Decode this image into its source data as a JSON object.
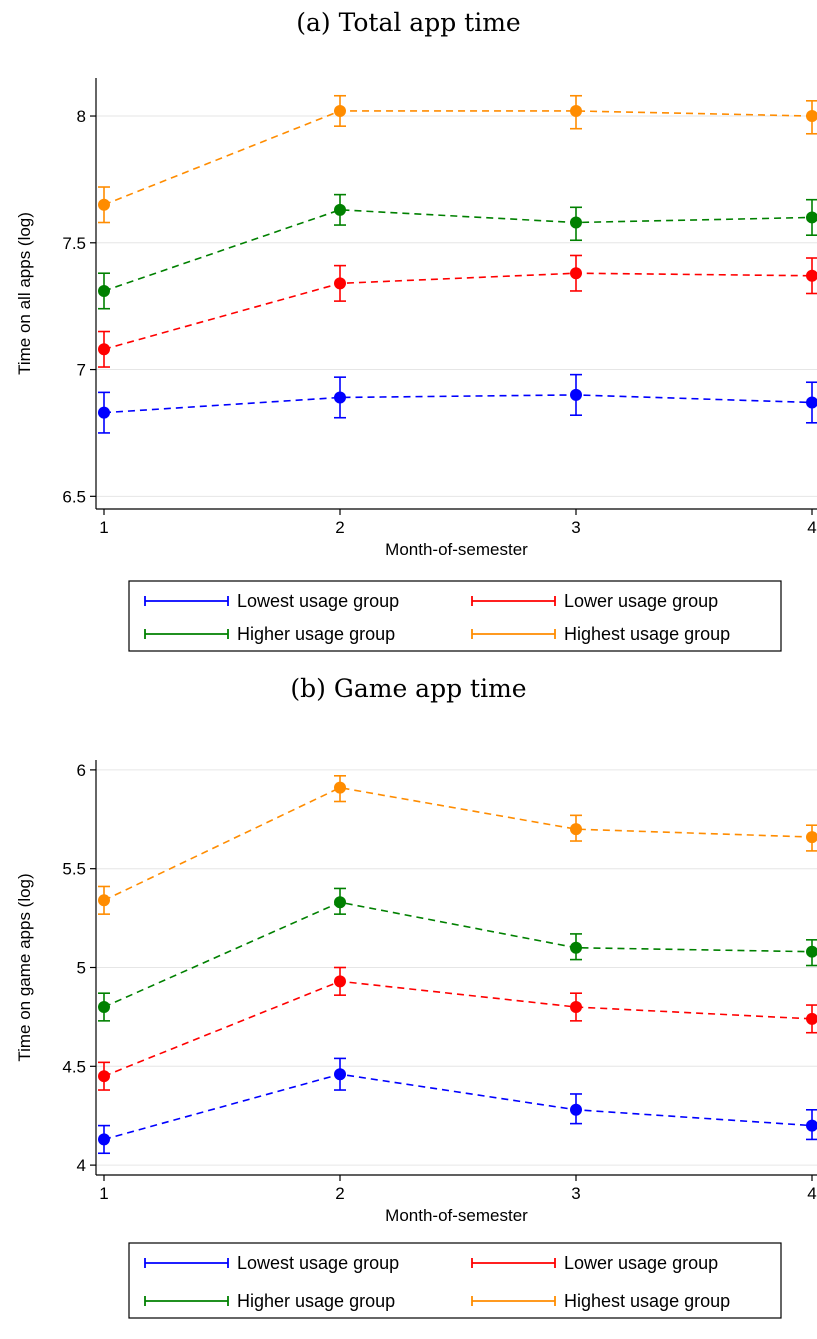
{
  "chart_data": [
    {
      "type": "line",
      "title": "(a) Total app time",
      "xlabel": "Month-of-semester",
      "ylabel": "Time on all apps (log)",
      "x": [
        1,
        2,
        3,
        4
      ],
      "xlim": [
        1,
        4
      ],
      "ylim": [
        6.45,
        8.15
      ],
      "yticks": [
        6.5,
        7,
        7.5,
        8
      ],
      "ytick_labels": [
        "6.5",
        "7",
        "7.5",
        "8"
      ],
      "xtick_labels": [
        "1",
        "2",
        "3",
        "4"
      ],
      "grid": true,
      "legend_position": "bottom",
      "series": [
        {
          "name": "Lowest usage group",
          "color": "#0000ff",
          "values": [
            6.83,
            6.89,
            6.9,
            6.87
          ],
          "lower": [
            6.75,
            6.81,
            6.82,
            6.79
          ],
          "upper": [
            6.91,
            6.97,
            6.98,
            6.95
          ]
        },
        {
          "name": "Lower usage group",
          "color": "#ff0000",
          "values": [
            7.08,
            7.34,
            7.38,
            7.37
          ],
          "lower": [
            7.01,
            7.27,
            7.31,
            7.3
          ],
          "upper": [
            7.15,
            7.41,
            7.45,
            7.44
          ]
        },
        {
          "name": "Higher usage group",
          "color": "#008000",
          "values": [
            7.31,
            7.63,
            7.58,
            7.6
          ],
          "lower": [
            7.24,
            7.57,
            7.51,
            7.53
          ],
          "upper": [
            7.38,
            7.69,
            7.64,
            7.67
          ]
        },
        {
          "name": "Highest usage group",
          "color": "#ff8c00",
          "values": [
            7.65,
            8.02,
            8.02,
            8.0
          ],
          "lower": [
            7.58,
            7.96,
            7.95,
            7.93
          ],
          "upper": [
            7.72,
            8.08,
            8.08,
            8.06
          ]
        }
      ]
    },
    {
      "type": "line",
      "title": "(b) Game app time",
      "xlabel": "Month-of-semester",
      "ylabel": "Time on game apps (log)",
      "x": [
        1,
        2,
        3,
        4
      ],
      "xlim": [
        1,
        4
      ],
      "ylim": [
        3.95,
        6.05
      ],
      "yticks": [
        4,
        4.5,
        5,
        5.5,
        6
      ],
      "ytick_labels": [
        "4",
        "4.5",
        "5",
        "5.5",
        "6"
      ],
      "xtick_labels": [
        "1",
        "2",
        "3",
        "4"
      ],
      "grid": true,
      "legend_position": "bottom",
      "series": [
        {
          "name": "Lowest usage group",
          "color": "#0000ff",
          "values": [
            4.13,
            4.46,
            4.28,
            4.2
          ],
          "lower": [
            4.06,
            4.38,
            4.21,
            4.13
          ],
          "upper": [
            4.2,
            4.54,
            4.36,
            4.28
          ]
        },
        {
          "name": "Lower usage group",
          "color": "#ff0000",
          "values": [
            4.45,
            4.93,
            4.8,
            4.74
          ],
          "lower": [
            4.38,
            4.86,
            4.73,
            4.67
          ],
          "upper": [
            4.52,
            5.0,
            4.87,
            4.81
          ]
        },
        {
          "name": "Higher usage group",
          "color": "#008000",
          "values": [
            4.8,
            5.33,
            5.1,
            5.08
          ],
          "lower": [
            4.73,
            5.27,
            5.04,
            5.01
          ],
          "upper": [
            4.87,
            5.4,
            5.17,
            5.14
          ]
        },
        {
          "name": "Highest usage group",
          "color": "#ff8c00",
          "values": [
            5.34,
            5.91,
            5.7,
            5.66
          ],
          "lower": [
            5.27,
            5.84,
            5.64,
            5.59
          ],
          "upper": [
            5.41,
            5.97,
            5.77,
            5.72
          ]
        }
      ]
    }
  ]
}
